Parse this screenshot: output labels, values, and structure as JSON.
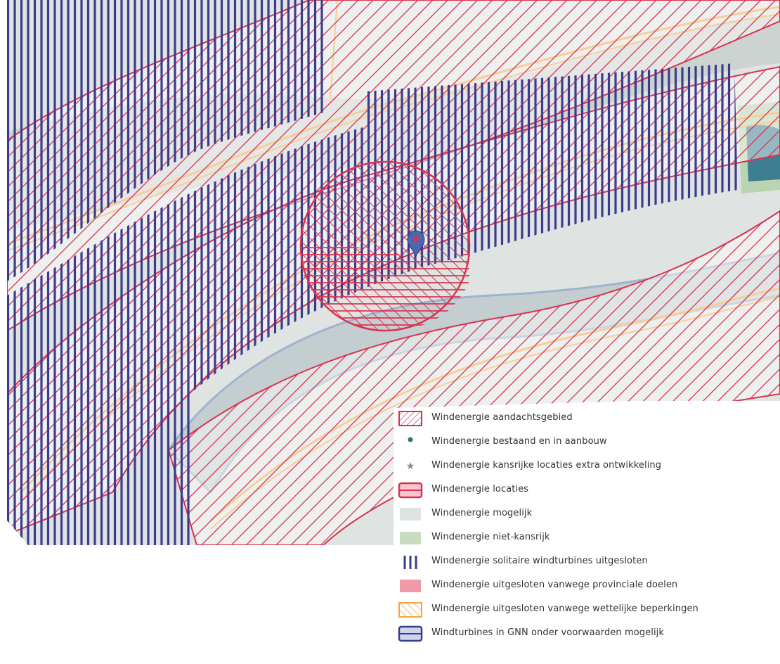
{
  "map": {
    "colors": {
      "base": "#dfe3e1",
      "land": "#c9d0cc",
      "water": "#aeb8c8",
      "lake": "#3f7d92",
      "field": "#b8d4b0",
      "red_hatch": "#d9334f",
      "purple_hatch": "#3a3d8e",
      "orange_road": "#f2a541",
      "marker": "#4a67b0"
    },
    "marker": {
      "icon": "location-pin-icon"
    }
  },
  "legend": {
    "items": [
      {
        "key": "aandachtsgebied",
        "label": "Windenergie aandachtsgebied",
        "swatch": "red-diagonal-hatch-icon"
      },
      {
        "key": "bestaand",
        "label": "Windenergie bestaand en in aanbouw",
        "swatch": "green-dot-icon"
      },
      {
        "key": "kansrijke",
        "label": "Windenergie kansrijke locaties extra ontwikkeling",
        "swatch": "star-icon"
      },
      {
        "key": "locaties",
        "label": "Windenergie locaties",
        "swatch": "red-horizontal-hatch-icon"
      },
      {
        "key": "mogelijk",
        "label": "Windenergie mogelijk",
        "swatch": "light-grey-fill-icon"
      },
      {
        "key": "niet_kansrijk",
        "label": "Windenergie niet-kansrijk",
        "swatch": "light-green-fill-icon"
      },
      {
        "key": "solitaire",
        "label": "Windenergie solitaire windturbines uitgesloten",
        "swatch": "purple-vertical-lines-icon"
      },
      {
        "key": "provinciale",
        "label": "Windenergie uitgesloten vanwege provinciale doelen",
        "swatch": "pink-fill-icon"
      },
      {
        "key": "wettelijke",
        "label": "Windenergie uitgesloten vanwege wettelijke beperkingen",
        "swatch": "orange-diagonal-hatch-icon"
      },
      {
        "key": "gnn",
        "label": "Windturbines in GNN onder voorwaarden mogelijk",
        "swatch": "purple-horizontal-hatch-icon"
      }
    ]
  }
}
